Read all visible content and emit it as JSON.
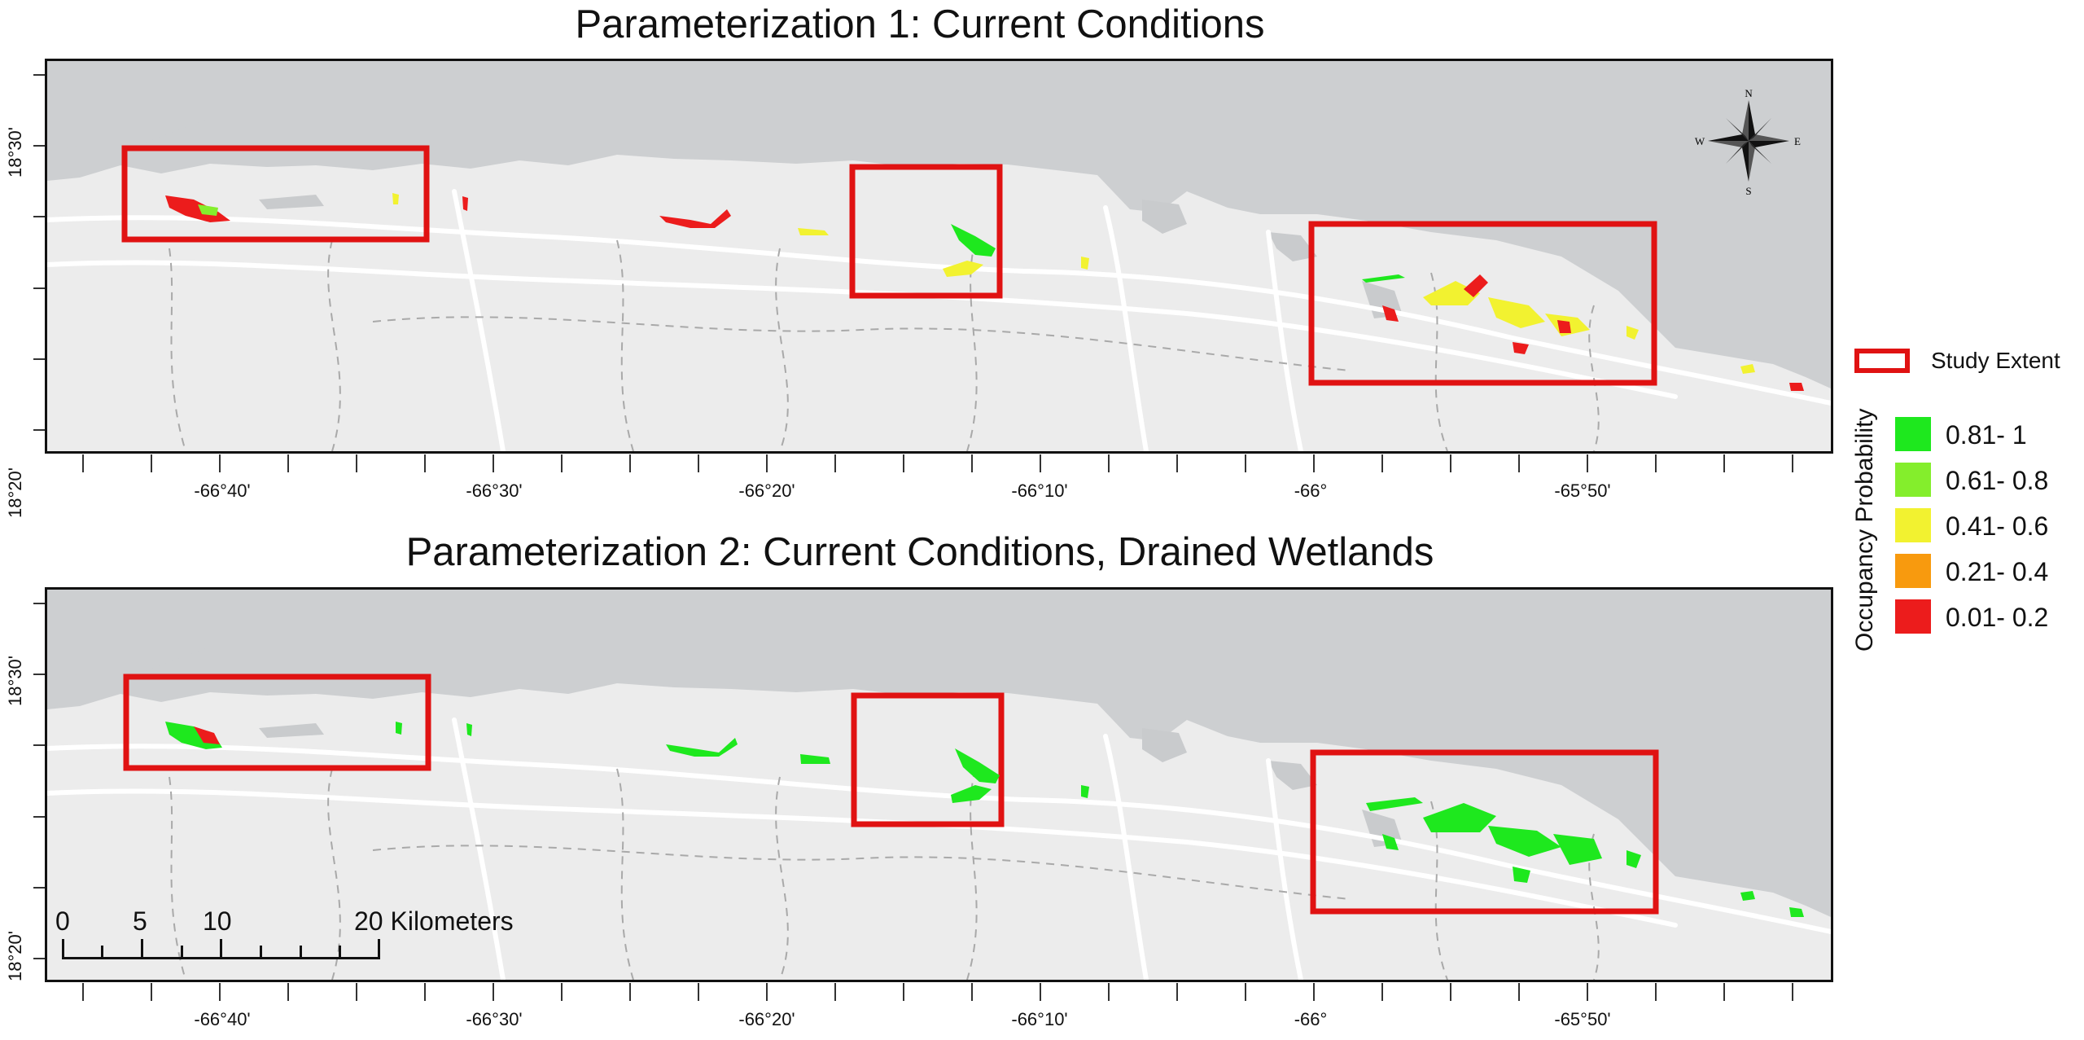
{
  "panels": [
    {
      "title": "Parameterization 1: Current Conditions"
    },
    {
      "title": "Parameterization 2: Current Conditions, Drained Wetlands"
    }
  ],
  "axes": {
    "x_ticks": [
      "-66°40'",
      "-66°30'",
      "-66°20'",
      "-66°10'",
      "-66°",
      "-65°50'"
    ],
    "y_ticks": [
      "18°30'",
      "18°20'"
    ]
  },
  "compass": {
    "n": "N",
    "s": "S",
    "e": "E",
    "w": "W"
  },
  "legend": {
    "study_extent_label": "Study Extent",
    "title": "Occupancy Probability",
    "items": [
      {
        "label": "0.81- 1",
        "color": "#1ee81e"
      },
      {
        "label": "0.61- 0.8",
        "color": "#84ee2c"
      },
      {
        "label": "0.41- 0.6",
        "color": "#f2f230"
      },
      {
        "label": "0.21- 0.4",
        "color": "#f89a0e"
      },
      {
        "label": "0.01- 0.2",
        "color": "#ec1c1c"
      }
    ]
  },
  "scale_bar": {
    "l0": "0",
    "l5": "5",
    "l10": "10",
    "l20": "20 Kilometers"
  },
  "colors": {
    "study_box": "#e01212",
    "sea": "#cdcfd1",
    "land": "#ececec"
  }
}
